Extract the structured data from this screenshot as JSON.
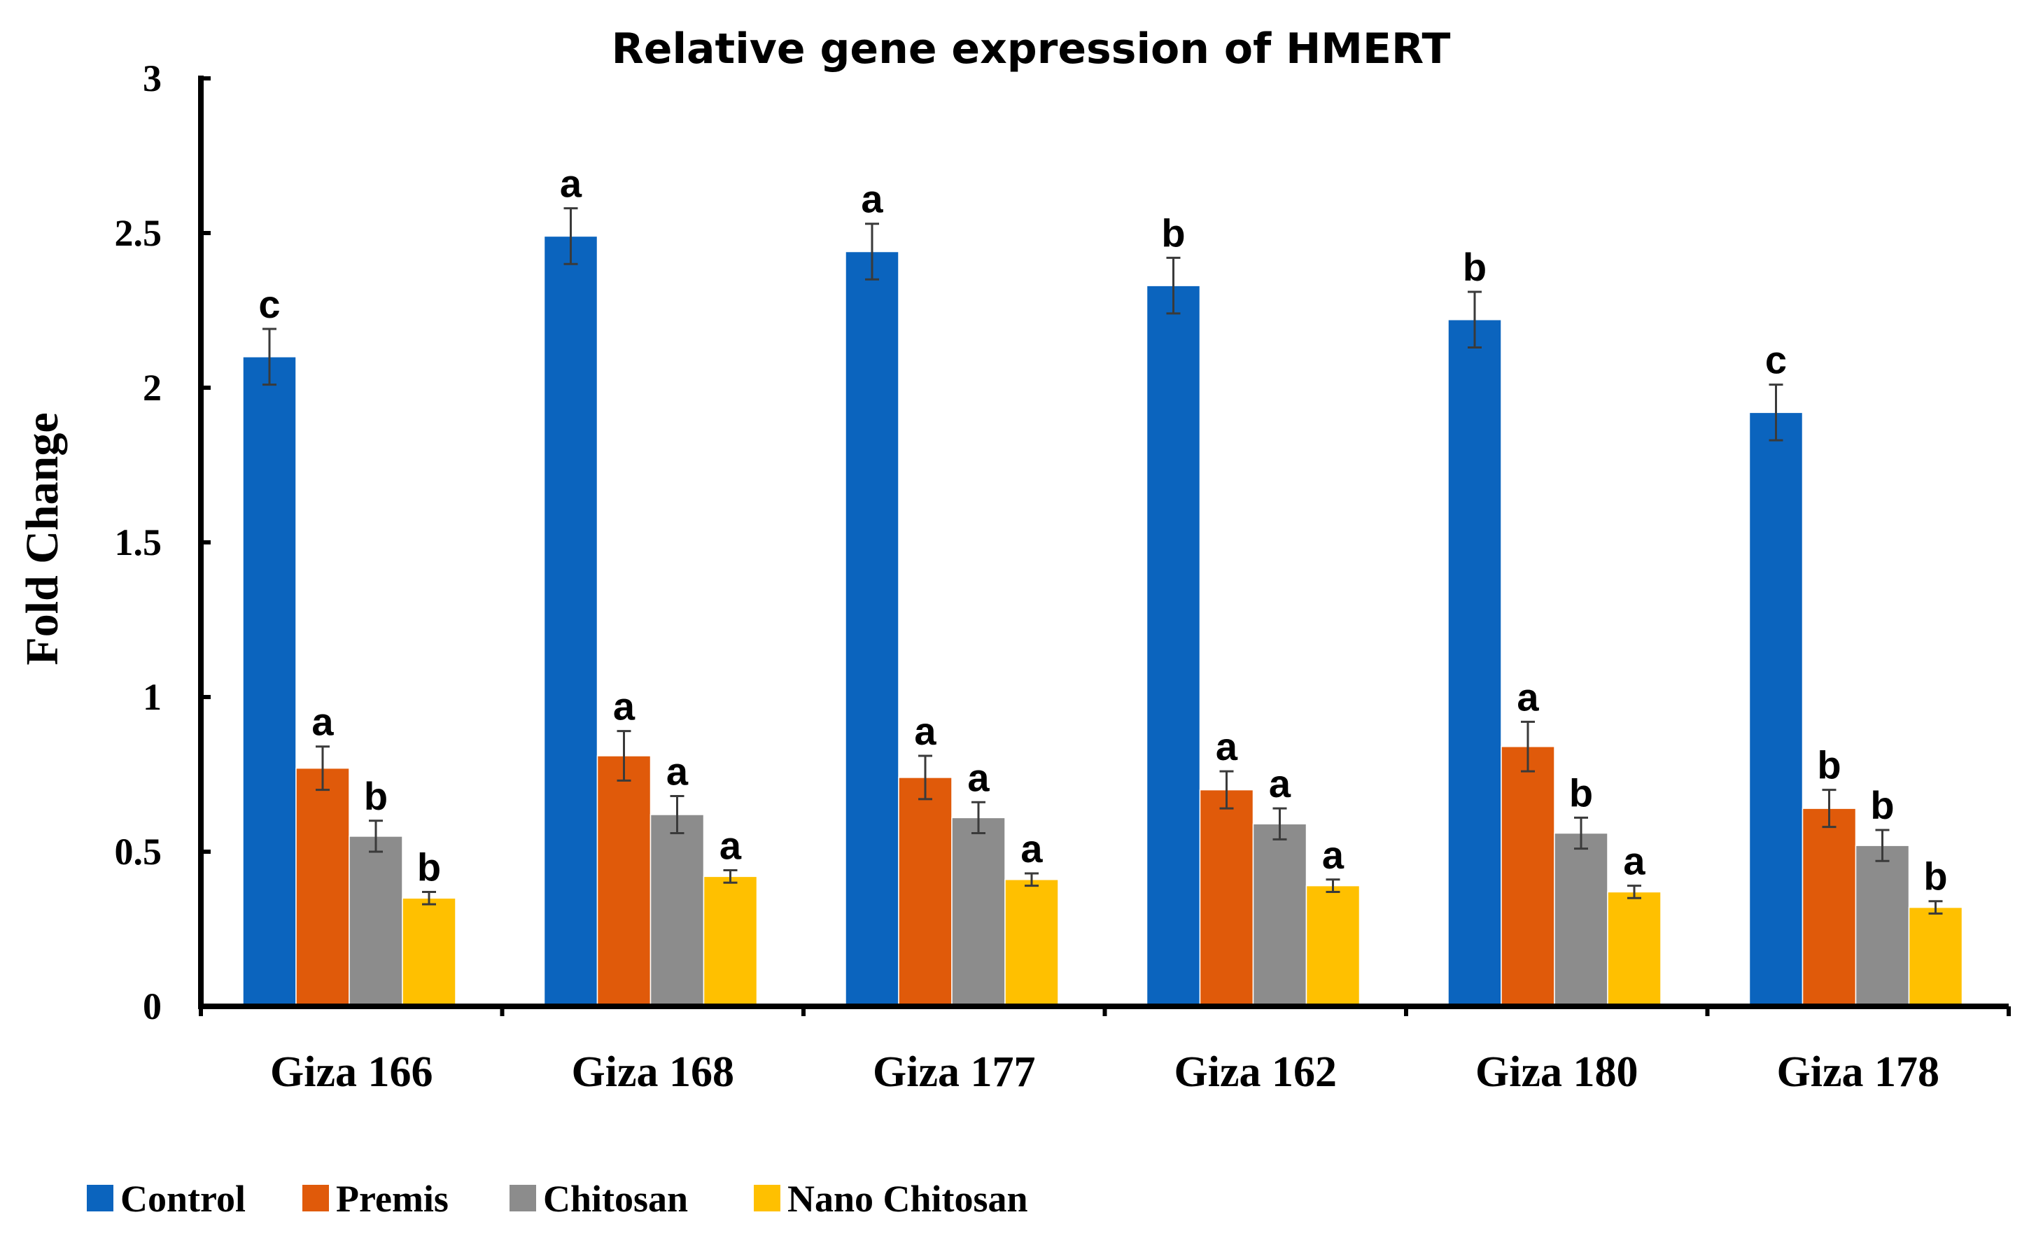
{
  "chart_data": {
    "type": "bar",
    "title": "Relative gene expression of HMERT",
    "xlabel": "",
    "ylabel": "Fold Change",
    "ylim": [
      0,
      3
    ],
    "yticks": [
      0,
      0.5,
      1,
      1.5,
      2,
      2.5,
      3
    ],
    "ytick_labels": [
      "0",
      "0.5",
      "1",
      "1.5",
      "2",
      "2.5",
      "3"
    ],
    "categories": [
      "Giza 166",
      "Giza 168",
      "Giza 177",
      "Giza 162",
      "Giza 180",
      "Giza 178"
    ],
    "legend_position": "bottom",
    "series": [
      {
        "name": "Control",
        "color": "#0B64BE",
        "values": [
          2.1,
          2.49,
          2.44,
          2.33,
          2.22,
          1.92
        ],
        "errors": [
          0.09,
          0.09,
          0.09,
          0.09,
          0.09,
          0.09
        ],
        "letters": [
          "c",
          "a",
          "a",
          "b",
          "b",
          "c"
        ]
      },
      {
        "name": "Premis",
        "color": "#E05A0A",
        "values": [
          0.77,
          0.81,
          0.74,
          0.7,
          0.84,
          0.64
        ],
        "errors": [
          0.07,
          0.08,
          0.07,
          0.06,
          0.08,
          0.06
        ],
        "letters": [
          "a",
          "a",
          "a",
          "a",
          "a",
          "b"
        ]
      },
      {
        "name": "Chitosan",
        "color": "#8C8C8C",
        "values": [
          0.55,
          0.62,
          0.61,
          0.59,
          0.56,
          0.52
        ],
        "errors": [
          0.05,
          0.06,
          0.05,
          0.05,
          0.05,
          0.05
        ],
        "letters": [
          "b",
          "a",
          "a",
          "a",
          "b",
          "b"
        ]
      },
      {
        "name": "Nano Chitosan",
        "color": "#FFC000",
        "values": [
          0.35,
          0.42,
          0.41,
          0.39,
          0.37,
          0.32
        ],
        "errors": [
          0.02,
          0.02,
          0.02,
          0.02,
          0.02,
          0.02
        ],
        "letters": [
          "b",
          "a",
          "a",
          "a",
          "a",
          "b"
        ]
      }
    ]
  }
}
